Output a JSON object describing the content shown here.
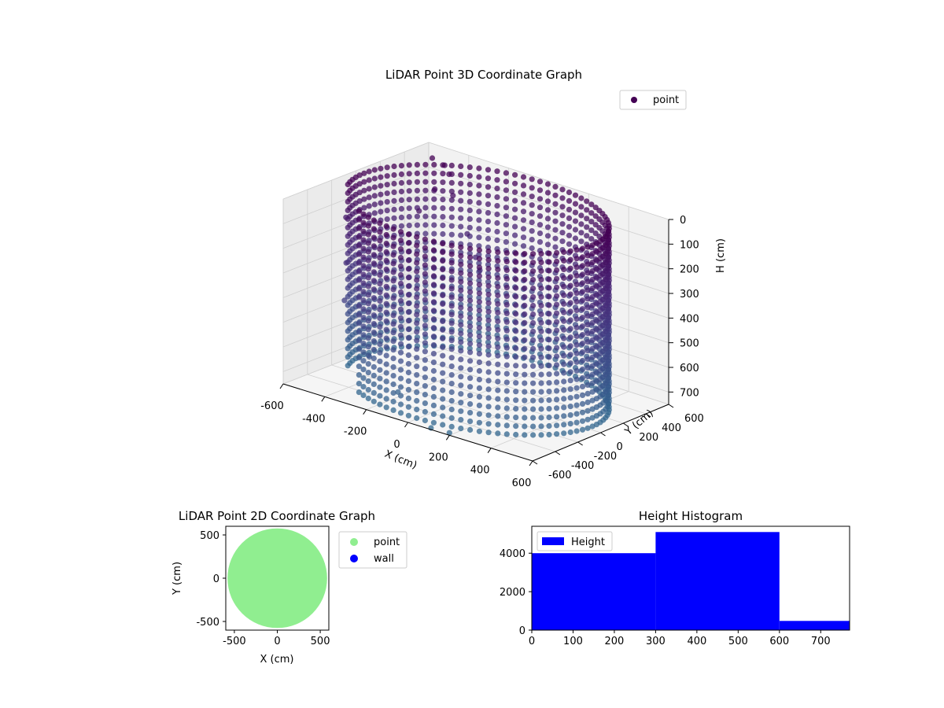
{
  "chart_data": [
    {
      "type": "scatter3d",
      "title": "LiDAR Point 3D Coordinate Graph",
      "xlabel": "X (cm)",
      "ylabel": "Y (cm)",
      "zlabel": "H (cm)",
      "xlim": [
        -600,
        600
      ],
      "ylim": [
        -600,
        600
      ],
      "zlim": [
        0,
        750
      ],
      "z_inverted": true,
      "x_ticks": [
        "-600",
        "-400",
        "-200",
        "0",
        "200",
        "400",
        "600"
      ],
      "y_ticks": [
        "-600",
        "-400",
        "-200",
        "0",
        "200",
        "400",
        "600"
      ],
      "z_ticks": [
        "0",
        "100",
        "200",
        "300",
        "400",
        "500",
        "600",
        "700"
      ],
      "legend": [
        "point"
      ],
      "legend_position": "upper-right",
      "colormap": "viridis",
      "grid": true,
      "series": [
        {
          "name": "point",
          "shape": "ring-wall",
          "ring_radius": 560,
          "ring_center": [
            0,
            0
          ],
          "gap_angle_deg": [
            200,
            235
          ],
          "height_range": [
            0,
            750
          ],
          "extra_points": [
            [
              -480,
              430,
              0
            ],
            [
              -430,
              450,
              20
            ],
            [
              -390,
              420,
              40
            ],
            [
              -360,
              250,
              60
            ],
            [
              -300,
              300,
              80
            ],
            [
              -320,
              50,
              100
            ],
            [
              -560,
              -150,
              150
            ],
            [
              -500,
              -250,
              300
            ],
            [
              -450,
              -350,
              420
            ],
            [
              -300,
              -400,
              600
            ],
            [
              -150,
              -420,
              700
            ],
            [
              100,
              -580,
              750
            ],
            [
              200,
              -600,
              740
            ],
            [
              -200,
              250,
              200
            ],
            [
              -100,
              150,
              250
            ],
            [
              -50,
              100,
              280
            ]
          ]
        }
      ]
    },
    {
      "type": "scatter",
      "title": "LiDAR Point 2D Coordinate Graph",
      "xlabel": "X (cm)",
      "ylabel": "Y (cm)",
      "xlim": [
        -600,
        600
      ],
      "ylim": [
        -600,
        600
      ],
      "x_ticks": [
        "-500",
        "0",
        "500"
      ],
      "y_ticks": [
        "-500",
        "0",
        "500"
      ],
      "legend": [
        "point",
        "wall"
      ],
      "legend_position": "outside-right",
      "series": [
        {
          "name": "point",
          "color": "#90ee90",
          "shape": "disc",
          "radius": 580,
          "center": [
            0,
            0
          ]
        },
        {
          "name": "wall",
          "color": "#0000ff",
          "points": []
        }
      ]
    },
    {
      "type": "bar",
      "title": "Height Histogram",
      "xlabel": "",
      "ylabel": "",
      "bins": [
        [
          0,
          300
        ],
        [
          300,
          600
        ],
        [
          600,
          770
        ]
      ],
      "values": [
        4000,
        5100,
        480
      ],
      "xlim": [
        0,
        770
      ],
      "ylim": [
        0,
        5400
      ],
      "x_ticks": [
        "0",
        "100",
        "200",
        "300",
        "400",
        "500",
        "600",
        "700"
      ],
      "y_ticks": [
        "0",
        "2000",
        "4000"
      ],
      "legend": [
        "Height"
      ],
      "legend_position": "upper-left",
      "color": "#0000ff"
    }
  ]
}
